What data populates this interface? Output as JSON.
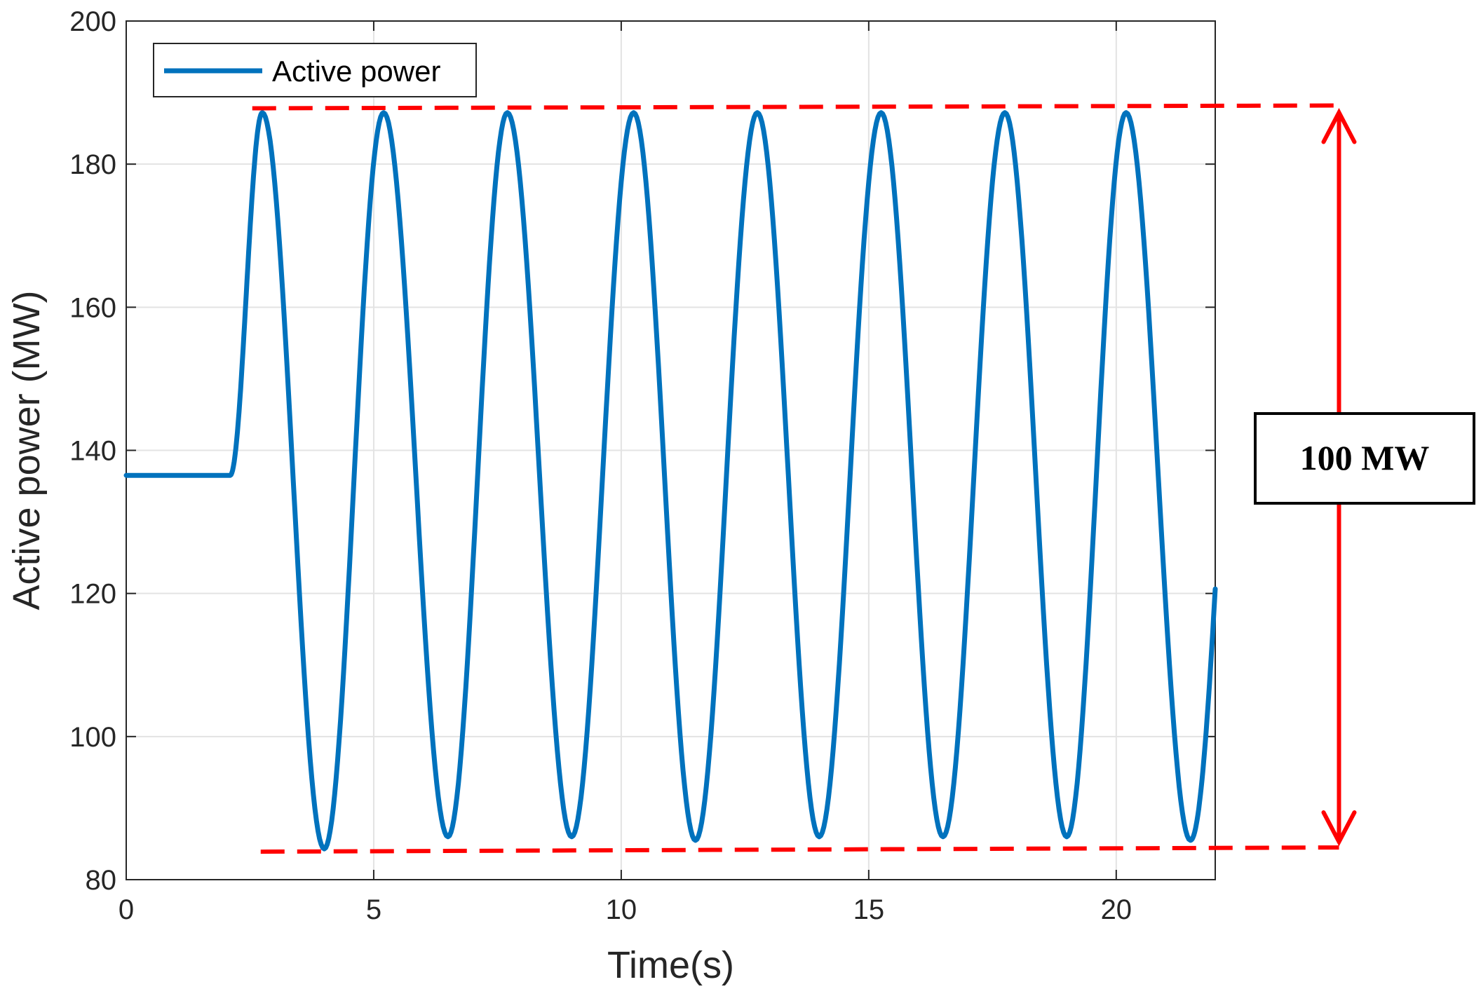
{
  "chart_data": {
    "type": "line",
    "title": "",
    "xlabel": "Time(s)",
    "ylabel": "Active power (MW)",
    "xlim": [
      0,
      22
    ],
    "ylim": [
      80,
      200
    ],
    "x_ticks": [
      0,
      5,
      10,
      15,
      20
    ],
    "y_ticks": [
      80,
      100,
      120,
      140,
      160,
      180,
      200
    ],
    "grid": true,
    "legend_position": "top-left",
    "series": [
      {
        "name": "Active power",
        "color": "#0072BD",
        "initial_value": 136.5,
        "disturbance_start": 2.1,
        "peaks": [
          {
            "x": 2.75,
            "y": 187.2
          },
          {
            "x": 5.2,
            "y": 187.2
          },
          {
            "x": 7.7,
            "y": 187.2
          },
          {
            "x": 10.25,
            "y": 187.2
          },
          {
            "x": 12.75,
            "y": 187.2
          },
          {
            "x": 15.25,
            "y": 187.2
          },
          {
            "x": 17.75,
            "y": 187.2
          },
          {
            "x": 20.2,
            "y": 187.2
          }
        ],
        "troughs": [
          {
            "x": 4.0,
            "y": 84.3
          },
          {
            "x": 6.5,
            "y": 86.0
          },
          {
            "x": 9.0,
            "y": 86.0
          },
          {
            "x": 11.5,
            "y": 85.5
          },
          {
            "x": 14.0,
            "y": 86.0
          },
          {
            "x": 16.5,
            "y": 86.0
          },
          {
            "x": 19.0,
            "y": 86.0
          },
          {
            "x": 21.5,
            "y": 85.5
          }
        ],
        "end": {
          "x": 22.0,
          "y": 122
        }
      }
    ],
    "annotations": {
      "color": "#FF0000",
      "upper_line_y": 188,
      "lower_line_y": 84.5,
      "lines_x_range": [
        1.3,
        24.5
      ],
      "arrow_x": 24.5,
      "label": "100 MW"
    }
  }
}
